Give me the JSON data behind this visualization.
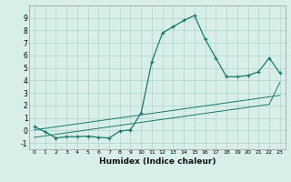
{
  "xlabel": "Humidex (Indice chaleur)",
  "x_data": [
    0,
    1,
    2,
    3,
    4,
    5,
    6,
    7,
    8,
    9,
    10,
    11,
    12,
    13,
    14,
    15,
    16,
    17,
    18,
    19,
    20,
    21,
    22,
    23
  ],
  "y_main": [
    0.3,
    -0.1,
    -0.6,
    -0.5,
    -0.5,
    -0.45,
    -0.55,
    -0.6,
    -0.05,
    0.05,
    1.4,
    5.5,
    7.8,
    8.3,
    8.8,
    9.2,
    7.3,
    5.8,
    4.3,
    4.3,
    4.4,
    4.7,
    5.8,
    4.6
  ],
  "y_line1": [
    0.05,
    0.17,
    0.29,
    0.41,
    0.53,
    0.65,
    0.77,
    0.89,
    1.01,
    1.13,
    1.25,
    1.37,
    1.49,
    1.61,
    1.73,
    1.85,
    1.97,
    2.09,
    2.21,
    2.33,
    2.45,
    2.57,
    2.69,
    2.81
  ],
  "y_line2": [
    -0.55,
    -0.43,
    -0.31,
    -0.19,
    -0.07,
    0.05,
    0.17,
    0.29,
    0.41,
    0.53,
    0.65,
    0.77,
    0.89,
    1.01,
    1.13,
    1.25,
    1.37,
    1.49,
    1.61,
    1.73,
    1.85,
    1.97,
    2.09,
    3.85
  ],
  "line_color": "#1a7a6a",
  "bg_color": "#d8eee8",
  "grid_color": "#b0d4cc",
  "ylim": [
    -1.5,
    10.0
  ],
  "xlim": [
    -0.5,
    23.5
  ],
  "yticks": [
    -1,
    0,
    1,
    2,
    3,
    4,
    5,
    6,
    7,
    8,
    9
  ],
  "xticks": [
    0,
    1,
    2,
    3,
    4,
    5,
    6,
    7,
    8,
    9,
    10,
    11,
    12,
    13,
    14,
    15,
    16,
    17,
    18,
    19,
    20,
    21,
    22,
    23
  ]
}
